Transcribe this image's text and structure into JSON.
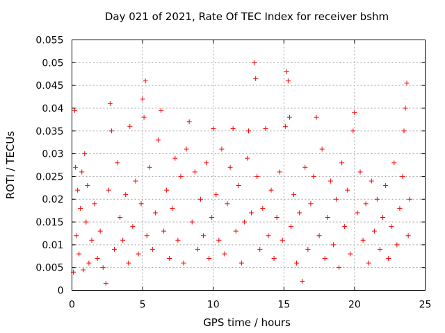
{
  "chart_data": {
    "type": "scatter",
    "title": "Day 021 of 2021, Rate Of TEC Index for receiver bshm",
    "xlabel": "GPS time / hours",
    "ylabel": "ROTI / TECUs",
    "xlim": [
      0,
      25
    ],
    "ylim": [
      0,
      0.055
    ],
    "xticks": [
      0,
      5,
      10,
      15,
      20,
      25
    ],
    "xtick_labels": [
      "0",
      "5",
      "10",
      "15",
      "20",
      "25"
    ],
    "yticks": [
      0,
      0.005,
      0.01,
      0.015,
      0.02,
      0.025,
      0.03,
      0.035,
      0.04,
      0.045,
      0.05,
      0.055
    ],
    "ytick_labels": [
      "0",
      "0.005",
      "0.01",
      "0.015",
      "0.02",
      "0.025",
      "0.03",
      "0.035",
      "0.04",
      "0.045",
      "0.05",
      "0.055"
    ],
    "grid": true,
    "marker": "+",
    "color": "#ff0000",
    "series": [
      {
        "name": "ROTI",
        "points": [
          [
            0.1,
            0.004
          ],
          [
            0.2,
            0.0395
          ],
          [
            0.25,
            0.027
          ],
          [
            0.3,
            0.012
          ],
          [
            0.4,
            0.022
          ],
          [
            0.5,
            0.008
          ],
          [
            0.6,
            0.018
          ],
          [
            0.7,
            0.026
          ],
          [
            0.8,
            0.0045
          ],
          [
            0.9,
            0.03
          ],
          [
            1.0,
            0.015
          ],
          [
            1.1,
            0.023
          ],
          [
            1.2,
            0.006
          ],
          [
            1.4,
            0.011
          ],
          [
            1.6,
            0.019
          ],
          [
            1.8,
            0.007
          ],
          [
            2.0,
            0.013
          ],
          [
            2.2,
            0.005
          ],
          [
            2.4,
            0.0015
          ],
          [
            2.6,
            0.022
          ],
          [
            2.7,
            0.041
          ],
          [
            2.8,
            0.035
          ],
          [
            3.0,
            0.009
          ],
          [
            3.2,
            0.028
          ],
          [
            3.4,
            0.016
          ],
          [
            3.6,
            0.011
          ],
          [
            3.8,
            0.021
          ],
          [
            4.0,
            0.006
          ],
          [
            4.1,
            0.036
          ],
          [
            4.3,
            0.014
          ],
          [
            4.5,
            0.024
          ],
          [
            4.7,
            0.008
          ],
          [
            4.9,
            0.019
          ],
          [
            5.0,
            0.042
          ],
          [
            5.1,
            0.038
          ],
          [
            5.2,
            0.046
          ],
          [
            5.3,
            0.012
          ],
          [
            5.5,
            0.027
          ],
          [
            5.7,
            0.009
          ],
          [
            5.9,
            0.017
          ],
          [
            6.1,
            0.033
          ],
          [
            6.3,
            0.0395
          ],
          [
            6.5,
            0.013
          ],
          [
            6.7,
            0.022
          ],
          [
            6.9,
            0.007
          ],
          [
            7.1,
            0.018
          ],
          [
            7.3,
            0.029
          ],
          [
            7.5,
            0.011
          ],
          [
            7.7,
            0.025
          ],
          [
            7.9,
            0.006
          ],
          [
            8.1,
            0.031
          ],
          [
            8.3,
            0.037
          ],
          [
            8.5,
            0.015
          ],
          [
            8.7,
            0.026
          ],
          [
            8.9,
            0.009
          ],
          [
            9.1,
            0.02
          ],
          [
            9.3,
            0.012
          ],
          [
            9.5,
            0.028
          ],
          [
            9.7,
            0.007
          ],
          [
            9.9,
            0.016
          ],
          [
            10.0,
            0.0355
          ],
          [
            10.2,
            0.021
          ],
          [
            10.4,
            0.011
          ],
          [
            10.6,
            0.031
          ],
          [
            10.8,
            0.008
          ],
          [
            11.0,
            0.019
          ],
          [
            11.2,
            0.027
          ],
          [
            11.4,
            0.0355
          ],
          [
            11.6,
            0.013
          ],
          [
            11.8,
            0.023
          ],
          [
            12.0,
            0.006
          ],
          [
            12.2,
            0.015
          ],
          [
            12.4,
            0.029
          ],
          [
            12.5,
            0.035
          ],
          [
            12.7,
            0.017
          ],
          [
            12.9,
            0.05
          ],
          [
            13.0,
            0.0465
          ],
          [
            13.1,
            0.025
          ],
          [
            13.3,
            0.009
          ],
          [
            13.5,
            0.018
          ],
          [
            13.7,
            0.0355
          ],
          [
            13.9,
            0.012
          ],
          [
            14.1,
            0.022
          ],
          [
            14.3,
            0.007
          ],
          [
            14.5,
            0.016
          ],
          [
            14.7,
            0.026
          ],
          [
            14.9,
            0.011
          ],
          [
            15.1,
            0.036
          ],
          [
            15.2,
            0.048
          ],
          [
            15.3,
            0.046
          ],
          [
            15.4,
            0.038
          ],
          [
            15.5,
            0.014
          ],
          [
            15.7,
            0.021
          ],
          [
            15.9,
            0.006
          ],
          [
            16.1,
            0.017
          ],
          [
            16.3,
            0.002
          ],
          [
            16.5,
            0.027
          ],
          [
            16.7,
            0.009
          ],
          [
            16.9,
            0.019
          ],
          [
            17.1,
            0.025
          ],
          [
            17.3,
            0.038
          ],
          [
            17.5,
            0.012
          ],
          [
            17.7,
            0.031
          ],
          [
            17.9,
            0.007
          ],
          [
            18.1,
            0.016
          ],
          [
            18.3,
            0.024
          ],
          [
            18.5,
            0.01
          ],
          [
            18.7,
            0.02
          ],
          [
            18.9,
            0.005
          ],
          [
            19.1,
            0.028
          ],
          [
            19.3,
            0.014
          ],
          [
            19.5,
            0.022
          ],
          [
            19.7,
            0.008
          ],
          [
            19.9,
            0.035
          ],
          [
            20.0,
            0.039
          ],
          [
            20.2,
            0.017
          ],
          [
            20.4,
            0.026
          ],
          [
            20.6,
            0.011
          ],
          [
            20.8,
            0.019
          ],
          [
            21.0,
            0.006
          ],
          [
            21.2,
            0.024
          ],
          [
            21.4,
            0.013
          ],
          [
            21.6,
            0.02
          ],
          [
            21.8,
            0.009
          ],
          [
            22.0,
            0.016
          ],
          [
            22.2,
            0.023
          ],
          [
            22.4,
            0.007
          ],
          [
            22.6,
            0.014
          ],
          [
            22.8,
            0.028
          ],
          [
            23.0,
            0.01
          ],
          [
            23.2,
            0.018
          ],
          [
            23.4,
            0.025
          ],
          [
            23.5,
            0.035
          ],
          [
            23.6,
            0.04
          ],
          [
            23.7,
            0.0455
          ],
          [
            23.8,
            0.012
          ],
          [
            23.9,
            0.02
          ]
        ]
      }
    ]
  }
}
